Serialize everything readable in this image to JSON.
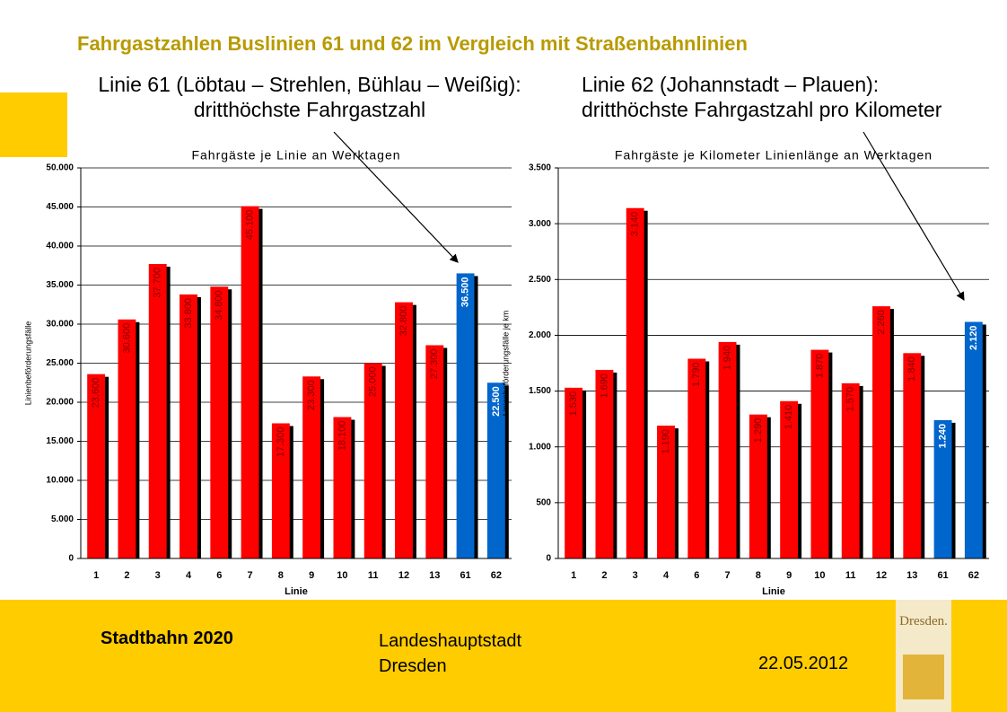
{
  "slide": {
    "title": "Fahrgastzahlen Buslinien 61 und 62 im Vergleich mit Straßenbahnlinien",
    "footer_left": "Stadtbahn 2020",
    "footer_middle": [
      "Landeshauptstadt",
      "Dresden"
    ],
    "footer_date": "22.05.2012",
    "logo": "Dresden."
  },
  "chart_data": [
    {
      "type": "bar",
      "heading": [
        "Linie 61 (Löbtau – Strehlen, Bühlau – Weißig):",
        "dritthöchste Fahrgastzahl"
      ],
      "title": "Fahrgäste je Linie an Werktagen",
      "x_label": "Linie",
      "y_label": "Linienbeförderungsfälle",
      "categories": [
        "1",
        "2",
        "3",
        "4",
        "6",
        "7",
        "8",
        "9",
        "10",
        "11",
        "12",
        "13",
        "61",
        "62"
      ],
      "values": [
        23600,
        30600,
        37700,
        33800,
        34800,
        45100,
        17300,
        23300,
        18100,
        25000,
        32800,
        27300,
        36500,
        22500
      ],
      "value_labels": [
        "23.600",
        "30.600",
        "37.700",
        "33.800",
        "34.800",
        "45.100",
        "17.300",
        "23.300",
        "18.100",
        "25.000",
        "32.800",
        "27.300",
        "36.500",
        "22.500"
      ],
      "colors": [
        "#ff0000",
        "#ff0000",
        "#ff0000",
        "#ff0000",
        "#ff0000",
        "#ff0000",
        "#ff0000",
        "#ff0000",
        "#ff0000",
        "#ff0000",
        "#ff0000",
        "#ff0000",
        "#0066cc",
        "#0066cc"
      ],
      "ylim": [
        0,
        50000
      ],
      "yticks": [
        0,
        {
          "value": 5000,
          "label": "5.000"
        },
        {
          "value": 10000,
          "label": "10.000"
        },
        {
          "value": 15000,
          "label": "15.000"
        },
        {
          "value": 20000,
          "label": "20.000"
        },
        {
          "value": 25000,
          "label": "25.000"
        },
        {
          "value": 30000,
          "label": "30.000"
        },
        {
          "value": 35000,
          "label": "35.000"
        },
        {
          "value": 40000,
          "label": "40.000"
        },
        {
          "value": 45000,
          "label": "45.000"
        },
        {
          "value": 50000,
          "label": "50.000"
        }
      ],
      "grid": true
    },
    {
      "type": "bar",
      "heading": [
        "Linie 62 (Johannstadt – Plauen):",
        "dritthöchste Fahrgastzahl pro Kilometer"
      ],
      "title": "Fahrgäste je Kilometer Linienlänge an Werktagen",
      "x_label": "Linie",
      "y_label": "Linienbeförderungsfälle je km",
      "categories": [
        "1",
        "2",
        "3",
        "4",
        "6",
        "7",
        "8",
        "9",
        "10",
        "11",
        "12",
        "13",
        "61",
        "62"
      ],
      "values": [
        1530,
        1690,
        3140,
        1190,
        1790,
        1940,
        1290,
        1410,
        1870,
        1570,
        2260,
        1840,
        1240,
        2120
      ],
      "value_labels": [
        "1.530",
        "1.690",
        "3.140",
        "1.190",
        "1.790",
        "1.940",
        "1.290",
        "1.410",
        "1.870",
        "1.570",
        "2.260",
        "1.840",
        "1.240",
        "2.120"
      ],
      "colors": [
        "#ff0000",
        "#ff0000",
        "#ff0000",
        "#ff0000",
        "#ff0000",
        "#ff0000",
        "#ff0000",
        "#ff0000",
        "#ff0000",
        "#ff0000",
        "#ff0000",
        "#ff0000",
        "#0066cc",
        "#0066cc"
      ],
      "ylim": [
        0,
        3500
      ],
      "yticks": [
        0,
        500,
        {
          "value": 1000,
          "label": "1.000"
        },
        {
          "value": 1500,
          "label": "1.500"
        },
        {
          "value": 2000,
          "label": "2.000"
        },
        {
          "value": 2500,
          "label": "2.500"
        },
        {
          "value": 3000,
          "label": "3.000"
        },
        {
          "value": 3500,
          "label": "3.500"
        }
      ],
      "grid": true
    }
  ]
}
